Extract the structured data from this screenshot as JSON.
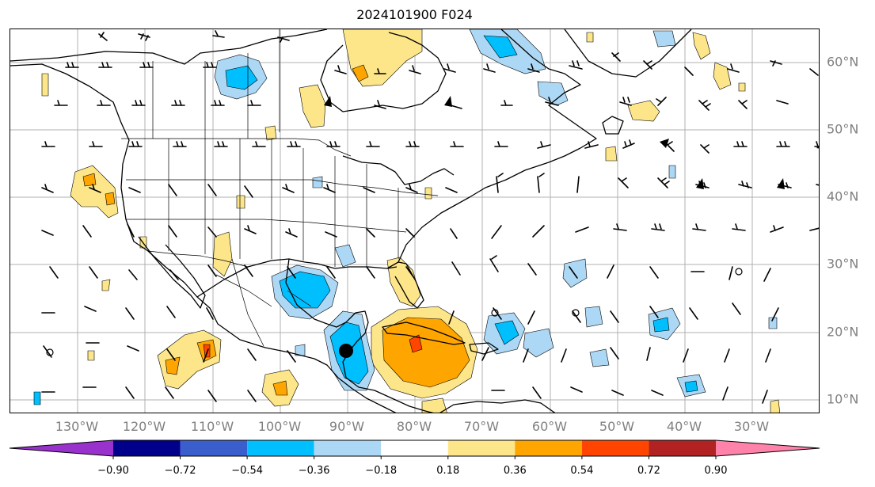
{
  "title": "2024101900 F024",
  "lat_labels": [
    "60°N",
    "50°N",
    "40°N",
    "30°N",
    "20°N",
    "10°N"
  ],
  "lon_labels": [
    "130°W",
    "120°W",
    "110°W",
    "100°W",
    "90°W",
    "80°W",
    "70°W",
    "60°W",
    "50°W",
    "40°W",
    "30°W"
  ],
  "colorbar": {
    "ticks": [
      "−0.90",
      "−0.72",
      "−0.54",
      "−0.36",
      "−0.18",
      "0.18",
      "0.36",
      "0.54",
      "0.72",
      "0.90"
    ],
    "colors": [
      "#9932cc",
      "#00008b",
      "#3a5fcd",
      "#00bfff",
      "#add8f5",
      "#ffffff",
      "#fde68a",
      "#ffa500",
      "#ff4500",
      "#b22222",
      "#ff82ab"
    ]
  },
  "map": {
    "extent": {
      "lon": [
        -139,
        -19
      ],
      "lat": [
        7.5,
        65
      ]
    },
    "contour_colors": {
      "pos1": "#fde68a",
      "pos2": "#ffa500",
      "pos3": "#ff4500",
      "neg1": "#add8f5",
      "neg2": "#00bfff"
    },
    "features": [
      "coastlines",
      "country borders",
      "US state borders",
      "graticule",
      "wind barbs",
      "filled contours"
    ]
  }
}
